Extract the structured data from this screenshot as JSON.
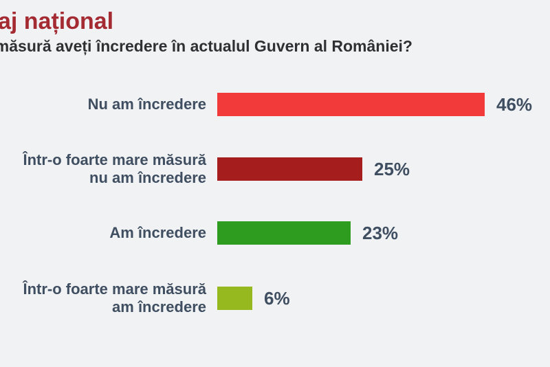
{
  "page": {
    "background_color": "#F1F2F4"
  },
  "header": {
    "title": "Sondaj național",
    "title_color": "#A42B32",
    "question": "În ce măsură aveți încredere în actualul Guvern al României?",
    "question_color": "#2F3033"
  },
  "chart_data": {
    "type": "bar",
    "orientation": "horizontal",
    "title": "",
    "xlabel": "",
    "ylabel": "",
    "grid": false,
    "legend": false,
    "xlim": [
      0,
      50
    ],
    "categories": [
      "Nu am încredere",
      "Într-o foarte mare măsură nu am încredere",
      "Am încredere",
      "Într-o foarte mare măsură am încredere"
    ],
    "label_lines": [
      [
        "Nu am încredere"
      ],
      [
        "Într-o foarte mare măsură",
        "nu am încredere"
      ],
      [
        "Am încredere"
      ],
      [
        "Într-o foarte mare măsură",
        "am încredere"
      ]
    ],
    "values": [
      46,
      25,
      23,
      6
    ],
    "value_labels": [
      "46%",
      "25%",
      "23%",
      "6%"
    ],
    "bar_colors": [
      "#F23A3A",
      "#A51E1D",
      "#2E9D1F",
      "#96B91F"
    ],
    "label_color": "#3F4E60",
    "value_color": "#3F4E60"
  }
}
